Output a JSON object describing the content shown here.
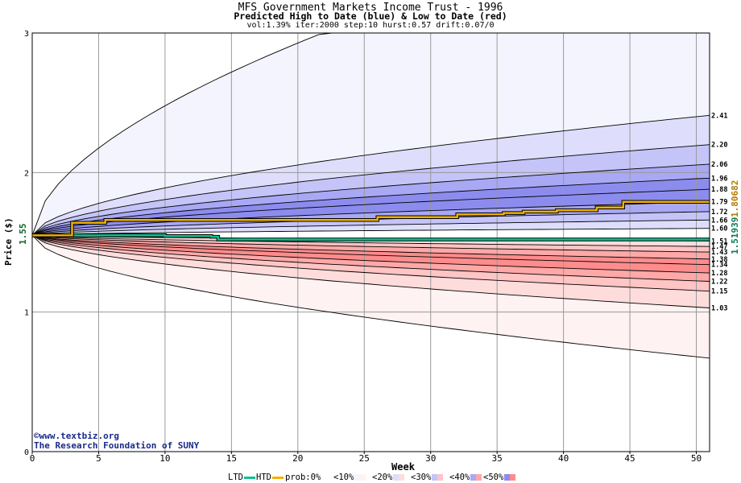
{
  "titles": {
    "main": "MFS Government Markets Income Trust - 1996",
    "sub": "Predicted High to Date (blue) &  Low to Date (red)",
    "params": "vol:1.39% iter:2000 step:10 hurst:0.57 drift:0.07/0"
  },
  "colors": {
    "background": "#ffffff",
    "grid": "#999999",
    "htd_line": "#f0b000",
    "ltd_line": "#10c090",
    "blue_bands": [
      "#f4f4ff",
      "#dedefc",
      "#c4c4f8",
      "#a8a8f4",
      "#8c8cee"
    ],
    "red_bands": [
      "#fff2f2",
      "#ffdcdc",
      "#ffc4c4",
      "#ffa8a8",
      "#ff8c8c"
    ]
  },
  "axis_labels": {
    "x": "Week",
    "y": "Price ($)"
  },
  "current_price_label": "1.55",
  "right_values": {
    "htd": "1.80682",
    "ltd": "1.51939"
  },
  "credits": {
    "line1": "©www.textbiz.org",
    "line2": "The Research Foundation of SUNY"
  },
  "legend": {
    "ltd": "LTD",
    "htd": "HTD",
    "prob": "prob:0%",
    "b10": "<10%",
    "b20": "<20%",
    "b30": "<30%",
    "b40": "<40%",
    "b50": "<50%"
  },
  "chart_data": {
    "type": "area",
    "title": "MFS Government Markets Income Trust - 1996",
    "subtitle": "Predicted High to Date (blue) &  Low to Date (red)",
    "xlabel": "Week",
    "ylabel": "Price ($)",
    "xlim": [
      0,
      51
    ],
    "ylim": [
      0,
      3
    ],
    "x_ticks": [
      0,
      5,
      10,
      15,
      20,
      25,
      30,
      35,
      40,
      45,
      50
    ],
    "y_ticks": [
      0,
      1,
      2,
      3
    ],
    "grid": true,
    "start_price": 1.55,
    "quantile_curves_blue": [
      {
        "end": 2.41,
        "label": "2.41"
      },
      {
        "end": 2.2,
        "label": "2.20"
      },
      {
        "end": 2.06,
        "label": "2.06"
      },
      {
        "end": 1.96,
        "label": "1.96"
      },
      {
        "end": 1.88,
        "label": "1.88"
      },
      {
        "end": 1.79,
        "label": "1.79"
      },
      {
        "end": 1.72,
        "label": "1.72"
      },
      {
        "end": 1.66,
        "label": "1.66"
      },
      {
        "end": 1.6,
        "label": "1.60"
      }
    ],
    "quantile_curves_red": [
      {
        "end": 1.51,
        "label": "1.51"
      },
      {
        "end": 1.47,
        "label": "1.47"
      },
      {
        "end": 1.43,
        "label": "1.43"
      },
      {
        "end": 1.38,
        "label": "1.38"
      },
      {
        "end": 1.34,
        "label": "1.34"
      },
      {
        "end": 1.28,
        "label": "1.28"
      },
      {
        "end": 1.22,
        "label": "1.22"
      },
      {
        "end": 1.15,
        "label": "1.15"
      },
      {
        "end": 1.03,
        "label": "1.03"
      }
    ],
    "outer_bounds": {
      "high": 3.0,
      "low": 0.67
    },
    "htd_series": {
      "x": [
        0,
        3,
        5.5,
        25,
        26,
        31,
        32,
        35.5,
        37,
        39.5,
        42.5,
        44.5,
        51
      ],
      "y": [
        1.55,
        1.64,
        1.66,
        1.66,
        1.68,
        1.68,
        1.7,
        1.71,
        1.72,
        1.73,
        1.75,
        1.79,
        1.79
      ]
    },
    "ltd_series": {
      "x": [
        0,
        10,
        13.5,
        14,
        51
      ],
      "y": [
        1.55,
        1.545,
        1.54,
        1.52,
        1.52
      ]
    }
  }
}
